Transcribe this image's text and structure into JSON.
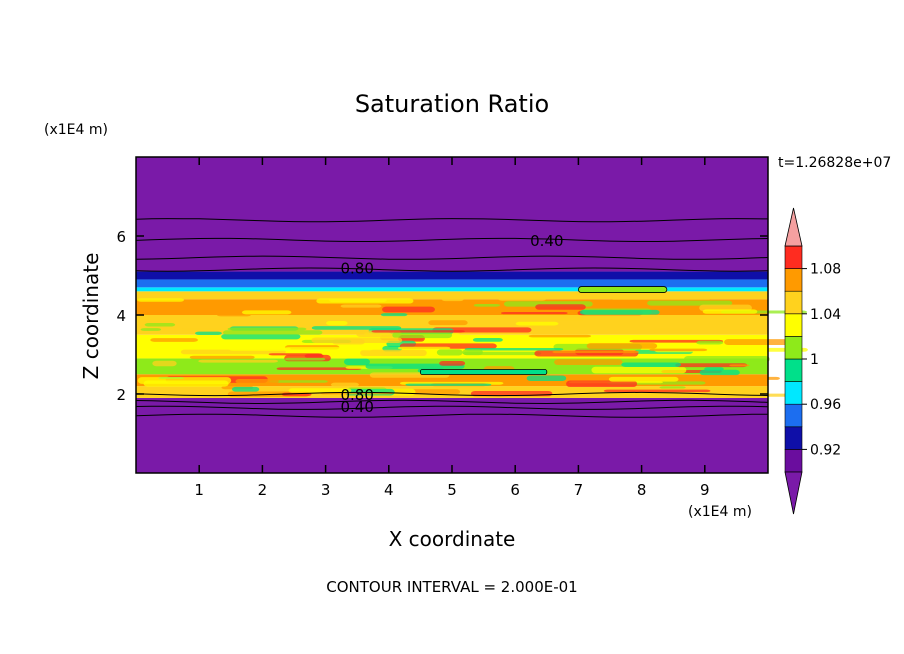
{
  "chart_data": {
    "type": "heatmap",
    "title": "Saturation Ratio",
    "xlabel": "X coordinate",
    "ylabel": "Z coordinate",
    "x_unit": "(x1E4 m)",
    "y_unit": "(x1E4 m)",
    "time_label": "t=1.26828e+07",
    "footer": "CONTOUR INTERVAL = 2.000E-01",
    "xlim": [
      0,
      10
    ],
    "ylim": [
      0,
      8
    ],
    "x_ticks": [
      "1",
      "2",
      "3",
      "4",
      "5",
      "6",
      "7",
      "8",
      "9"
    ],
    "y_ticks": [
      "2",
      "4",
      "6"
    ],
    "colorbar": {
      "levels": [
        0.9,
        0.92,
        0.94,
        0.96,
        0.98,
        1.0,
        1.02,
        1.04,
        1.06,
        1.08,
        1.1
      ],
      "tick_labels": [
        "0.92",
        "0.96",
        "1",
        "1.04",
        "1.08"
      ],
      "colors": [
        "#6a0d9e",
        "#0f0fa8",
        "#1c6ef0",
        "#00e8ff",
        "#00e08a",
        "#8eea1a",
        "#ffff00",
        "#ffd21e",
        "#ff9a00",
        "#ff2c20"
      ],
      "under_color": "#7a1aa8",
      "over_color": "#f5a0a0"
    },
    "contour_labels": [
      {
        "text": "0.40",
        "x": 6.5,
        "z": 5.9
      },
      {
        "text": "0.80",
        "x": 3.5,
        "z": 5.2
      },
      {
        "text": "0.80",
        "x": 3.5,
        "z": 2.0
      },
      {
        "text": "0.40",
        "x": 3.5,
        "z": 1.7
      }
    ],
    "bands": [
      {
        "z0": 0.0,
        "z1": 1.9,
        "color": "#7a1aa8"
      },
      {
        "z0": 1.9,
        "z1": 2.2,
        "color": "#ffd21e"
      },
      {
        "z0": 2.2,
        "z1": 2.5,
        "color": "#ff9a00"
      },
      {
        "z0": 2.5,
        "z1": 2.9,
        "color": "#8eea1a"
      },
      {
        "z0": 2.9,
        "z1": 3.5,
        "color": "#ffff00"
      },
      {
        "z0": 3.5,
        "z1": 4.0,
        "color": "#ffd21e"
      },
      {
        "z0": 4.0,
        "z1": 4.4,
        "color": "#ff9a00"
      },
      {
        "z0": 4.4,
        "z1": 4.6,
        "color": "#ffd21e"
      },
      {
        "z0": 4.6,
        "z1": 4.7,
        "color": "#00e8ff"
      },
      {
        "z0": 4.7,
        "z1": 4.9,
        "color": "#1c6ef0"
      },
      {
        "z0": 4.9,
        "z1": 5.1,
        "color": "#0f0fa8"
      },
      {
        "z0": 5.1,
        "z1": 8.0,
        "color": "#7a1aa8"
      }
    ],
    "contour_lines_z": [
      1.45,
      1.65,
      1.8,
      2.0,
      5.15,
      5.45,
      5.9,
      6.4
    ]
  }
}
